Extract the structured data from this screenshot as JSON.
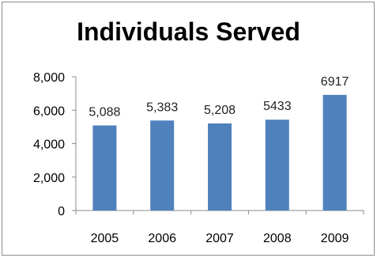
{
  "chart_data": {
    "type": "bar",
    "title": "Individuals Served",
    "xlabel": "",
    "ylabel": "",
    "categories": [
      "2005",
      "2006",
      "2007",
      "2008",
      "2009"
    ],
    "series": [
      {
        "values": [
          5088,
          5383,
          5208,
          5433,
          6917
        ]
      }
    ],
    "data_labels": [
      "5,088",
      "5,383",
      "5,208",
      "5433",
      "6917"
    ],
    "y_ticks": [
      "0",
      "2,000",
      "4,000",
      "6,000",
      "8,000"
    ],
    "ylim": [
      0,
      8000
    ],
    "grid": false,
    "legend": "none",
    "bar_color": "#4f81bd"
  }
}
